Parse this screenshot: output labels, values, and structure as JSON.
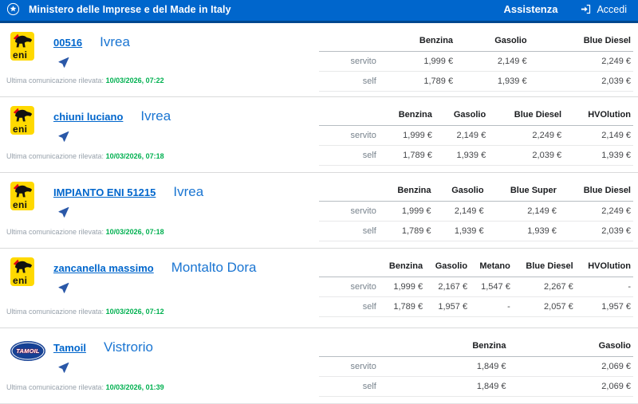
{
  "header": {
    "title": "Ministero delle Imprese e del Made in Italy",
    "assistenza_label": "Assistenza",
    "accedi_label": "Accedi"
  },
  "labels": {
    "last_comm": "Ultima comunicazione rilevata:",
    "servito": "servito",
    "self": "self"
  },
  "logos": {
    "eni_text": "eni",
    "tamoil_text": "TAMOIL"
  },
  "colors": {
    "header_blue": "#0066CC",
    "link_blue": "#0066CC",
    "city_blue": "#1a75d2",
    "timestamp_green": "#00b050",
    "eni_yellow": "#FFD900",
    "tamoil_blue": "#164194",
    "brand_red": "#E30613"
  },
  "stations": [
    {
      "brand": "eni",
      "name": "00516",
      "city": "Ivrea",
      "timestamp": "10/03/2026, 07:22",
      "columns": [
        "Benzina",
        "Gasolio",
        "Blue Diesel"
      ],
      "servito": [
        "1,999 €",
        "2,149 €",
        "2,249 €"
      ],
      "self": [
        "1,789 €",
        "1,939 €",
        "2,039 €"
      ]
    },
    {
      "brand": "eni",
      "name": "chiuni luciano",
      "city": "Ivrea",
      "timestamp": "10/03/2026, 07:18",
      "columns": [
        "Benzina",
        "Gasolio",
        "Blue Diesel",
        "HVOlution"
      ],
      "servito": [
        "1,999 €",
        "2,149 €",
        "2,249 €",
        "2,149 €"
      ],
      "self": [
        "1,789 €",
        "1,939 €",
        "2,039 €",
        "1,939 €"
      ]
    },
    {
      "brand": "eni",
      "name": "IMPIANTO ENI 51215",
      "city": "Ivrea",
      "timestamp": "10/03/2026, 07:18",
      "columns": [
        "Benzina",
        "Gasolio",
        "Blue Super",
        "Blue Diesel"
      ],
      "servito": [
        "1,999 €",
        "2,149 €",
        "2,149 €",
        "2,249 €"
      ],
      "self": [
        "1,789 €",
        "1,939 €",
        "1,939 €",
        "2,039 €"
      ]
    },
    {
      "brand": "eni",
      "name": "zancanella massimo",
      "city": "Montalto Dora",
      "timestamp": "10/03/2026, 07:12",
      "columns": [
        "Benzina",
        "Gasolio",
        "Metano",
        "Blue Diesel",
        "HVOlution"
      ],
      "servito": [
        "1,999 €",
        "2,167 €",
        "1,547 €",
        "2,267 €",
        "-"
      ],
      "self": [
        "1,789 €",
        "1,957 €",
        "-",
        "2,057 €",
        "1,957 €"
      ]
    },
    {
      "brand": "tamoil",
      "name": "Tamoil",
      "city": "Vistrorio",
      "timestamp": "10/03/2026, 01:39",
      "columns": [
        "Benzina",
        "Gasolio"
      ],
      "servito": [
        "1,849 €",
        "2,069 €"
      ],
      "self": [
        "1,849 €",
        "2,069 €"
      ]
    }
  ]
}
